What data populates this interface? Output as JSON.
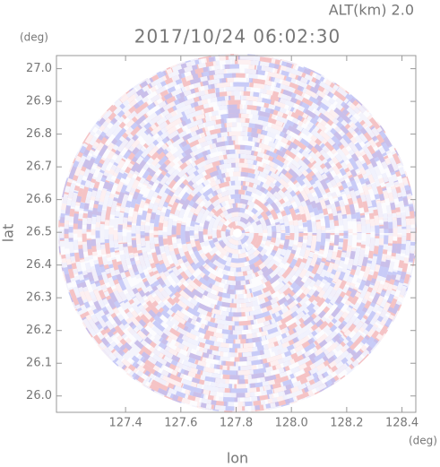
{
  "chart_data": {
    "type": "radar-ppi",
    "subtitle": "ALT(km) 2.0",
    "title": "2017/10/24 06:02:30",
    "x_label": "lon",
    "y_label": "lat",
    "x_unit": "(deg)",
    "y_unit": "(deg)",
    "xlim": [
      127.15,
      128.45
    ],
    "xticks": [
      127.4,
      127.6,
      127.8,
      {
        "value": 128.0,
        "label": "128.0"
      },
      128.2,
      128.4
    ],
    "ylim": [
      25.95,
      27.04
    ],
    "yticks": [
      {
        "value": 26.0,
        "label": "26.0"
      },
      26.1,
      26.2,
      26.3,
      26.4,
      26.5,
      26.6,
      26.7,
      26.8,
      26.9,
      {
        "value": 27.0,
        "label": "27.0"
      }
    ]
  }
}
